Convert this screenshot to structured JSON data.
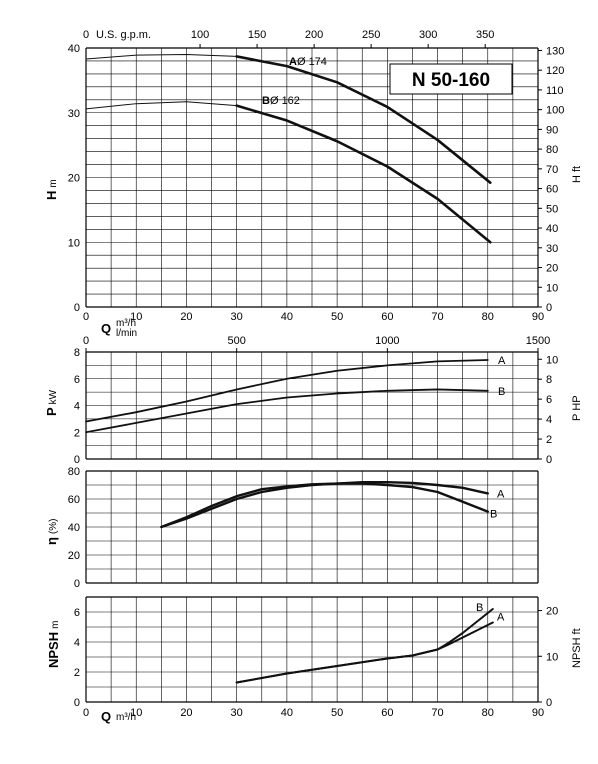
{
  "chart_data": [
    {
      "type": "line",
      "panel": "head",
      "title": "N 50-160",
      "x": [
        0,
        10,
        20,
        30,
        40,
        50,
        60,
        70,
        80
      ],
      "xlim": [
        0,
        90
      ],
      "xlabel": "Q",
      "xunit": "m³/h",
      "xunit2": "l/min",
      "top_axis_label": "U.S. g.p.m.",
      "top_ticks": [
        0,
        100,
        150,
        200,
        250,
        300,
        350
      ],
      "ylim": [
        0,
        40
      ],
      "ylabel": "H",
      "yunit": "m",
      "y2label": "H",
      "y2unit": "ft",
      "y2ticks": [
        0,
        10,
        20,
        30,
        40,
        50,
        60,
        70,
        80,
        90,
        100,
        110,
        120,
        130
      ],
      "series": [
        {
          "name": "A",
          "label_main": "A",
          "label_detail": "Ø 174",
          "values": [
            38.3,
            38.9,
            39.0,
            38.7,
            37.2,
            34.7,
            30.9,
            25.8,
            19.2
          ]
        },
        {
          "name": "B",
          "label_main": "B",
          "label_detail": "Ø 162",
          "values": [
            30.6,
            31.4,
            31.7,
            31.1,
            28.8,
            25.6,
            21.7,
            16.7,
            10.0
          ]
        }
      ],
      "x_values": [
        0,
        10,
        20,
        30,
        40,
        50,
        60,
        70,
        80.5
      ]
    },
    {
      "type": "line",
      "panel": "power",
      "ylabel": "P",
      "yunit": "kW",
      "y2label": "P",
      "y2unit": "HP",
      "top_axis_ticks": [
        0,
        500,
        1000,
        1500
      ],
      "ylim": [
        0,
        8
      ],
      "y2ticks": [
        0,
        2,
        4,
        6,
        8,
        10
      ],
      "x_values": [
        0,
        10,
        20,
        30,
        40,
        50,
        60,
        70,
        80
      ],
      "series": [
        {
          "name": "A",
          "values": [
            2.8,
            3.5,
            4.3,
            5.2,
            6.0,
            6.6,
            7.0,
            7.3,
            7.4
          ]
        },
        {
          "name": "B",
          "values": [
            2.0,
            2.7,
            3.4,
            4.1,
            4.6,
            4.9,
            5.1,
            5.2,
            5.1
          ]
        }
      ]
    },
    {
      "type": "line",
      "panel": "efficiency",
      "ylabel": "η",
      "yunit": "(%)",
      "ylim": [
        0,
        80
      ],
      "yticks": [
        0,
        20,
        40,
        60,
        80
      ],
      "x_values": [
        15,
        20,
        25,
        30,
        35,
        40,
        45,
        50,
        55,
        60,
        65,
        70,
        75,
        80
      ],
      "series": [
        {
          "name": "A",
          "values": [
            40,
            46,
            53,
            60,
            65,
            68,
            70,
            71,
            72,
            72,
            71.5,
            70,
            68,
            64
          ]
        },
        {
          "name": "B",
          "values": [
            40,
            47,
            55,
            62,
            67,
            69,
            70.5,
            71,
            71,
            70,
            68.5,
            65,
            58,
            51
          ]
        }
      ]
    },
    {
      "type": "line",
      "panel": "npsh",
      "ylabel": "NPSH",
      "yunit": "m",
      "y2label": "NPSH",
      "y2unit": "ft",
      "ylim": [
        0,
        7
      ],
      "yticks": [
        0,
        2,
        4,
        6
      ],
      "y2ticks": [
        0,
        10,
        20
      ],
      "xlabel": "Q",
      "xunit": "m³/h",
      "xticks": [
        0,
        10,
        20,
        30,
        40,
        50,
        60,
        70,
        80,
        90
      ],
      "x_values": [
        30,
        40,
        50,
        60,
        65,
        70,
        72,
        75,
        78,
        81
      ],
      "series": [
        {
          "name": "A",
          "values": [
            1.3,
            1.9,
            2.4,
            2.9,
            3.1,
            3.5,
            3.8,
            4.3,
            4.8,
            5.3
          ]
        },
        {
          "name": "B",
          "values": [
            1.3,
            1.9,
            2.4,
            2.9,
            3.1,
            3.5,
            3.9,
            4.6,
            5.4,
            6.2
          ]
        }
      ]
    }
  ],
  "colors": {
    "curve": "#111111",
    "grid": "#000000",
    "background": "#ffffff"
  }
}
